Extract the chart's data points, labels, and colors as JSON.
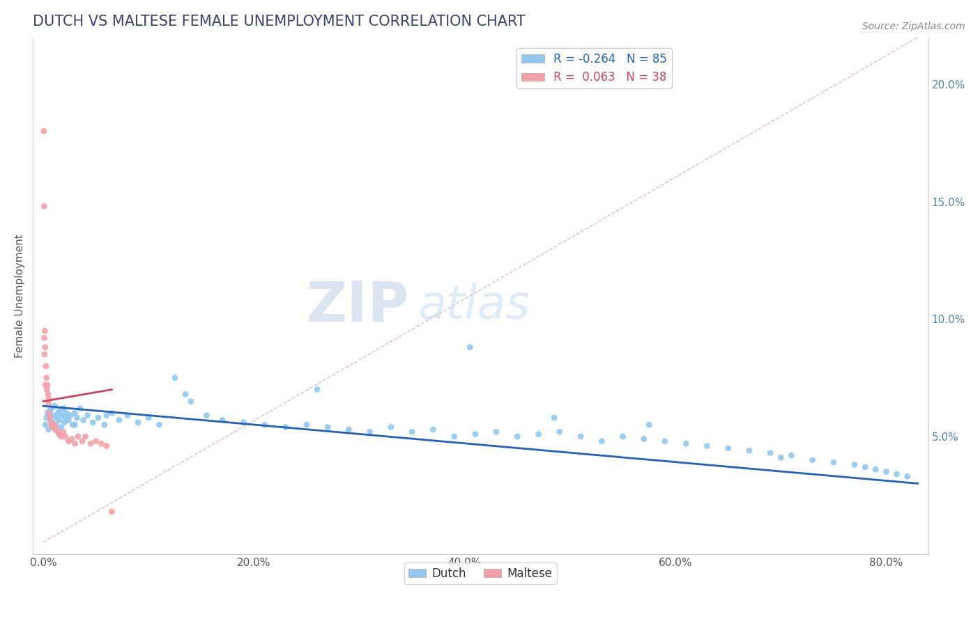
{
  "title": "DUTCH VS MALTESE FEMALE UNEMPLOYMENT CORRELATION CHART",
  "source": "Source: ZipAtlas.com",
  "ylabel": "Female Unemployment",
  "xlim": [
    -1.0,
    84.0
  ],
  "ylim": [
    0.0,
    22.0
  ],
  "yticks": [
    5.0,
    10.0,
    15.0,
    20.0
  ],
  "ytick_labels": [
    "5.0%",
    "10.0%",
    "15.0%",
    "20.0%"
  ],
  "xticks": [
    0.0,
    20.0,
    40.0,
    60.0,
    80.0
  ],
  "xtick_labels": [
    "0.0%",
    "20.0%",
    "40.0%",
    "60.0%",
    "80.0%"
  ],
  "dutch_R": -0.264,
  "dutch_N": 85,
  "maltese_R": 0.063,
  "maltese_N": 38,
  "dutch_dot_color": "#90c8f0",
  "maltese_dot_color": "#f4a0a8",
  "dutch_line_color": "#2060c0",
  "maltese_line_color": "#d04060",
  "ref_line_color": "#d0a0a8",
  "grid_color": "#e8e8e8",
  "background_color": "#ffffff",
  "title_color": "#404070",
  "source_color": "#888888",
  "watermark_text": "ZIPAtlas",
  "watermark_color": "#c8d8ec",
  "legend_dutch_label": "Dutch",
  "legend_maltese_label": "Maltese",
  "dutch_legend_color": "#90c8f0",
  "maltese_legend_color": "#f4a0a8",
  "dutch_x": [
    0.2,
    0.3,
    0.4,
    0.5,
    0.6,
    0.7,
    0.8,
    0.9,
    1.0,
    1.1,
    1.2,
    1.3,
    1.4,
    1.5,
    1.6,
    1.7,
    1.8,
    1.9,
    2.0,
    2.1,
    2.2,
    2.4,
    2.6,
    2.8,
    3.0,
    3.2,
    3.5,
    3.8,
    4.2,
    4.7,
    5.2,
    5.8,
    6.5,
    7.2,
    8.0,
    9.0,
    10.0,
    11.0,
    12.5,
    14.0,
    15.5,
    17.0,
    19.0,
    21.0,
    23.0,
    25.0,
    27.0,
    29.0,
    31.0,
    33.0,
    35.0,
    37.0,
    39.0,
    41.0,
    43.0,
    45.0,
    47.0,
    49.0,
    51.0,
    53.0,
    55.0,
    57.0,
    59.0,
    61.0,
    63.0,
    65.0,
    67.0,
    69.0,
    71.0,
    73.0,
    75.0,
    77.0,
    78.0,
    79.0,
    80.0,
    81.0,
    82.0,
    26.0,
    40.5,
    13.5,
    6.0,
    3.0,
    48.5,
    57.5,
    70.0
  ],
  "dutch_y": [
    5.5,
    5.8,
    6.0,
    5.3,
    6.1,
    5.7,
    6.2,
    5.6,
    5.9,
    6.3,
    5.5,
    5.8,
    6.0,
    5.7,
    6.1,
    5.4,
    5.9,
    6.2,
    5.6,
    5.8,
    6.0,
    5.7,
    5.9,
    5.5,
    6.0,
    5.8,
    6.2,
    5.7,
    5.9,
    5.6,
    5.8,
    5.5,
    6.0,
    5.7,
    5.9,
    5.6,
    5.8,
    5.5,
    7.5,
    6.5,
    5.9,
    5.7,
    5.6,
    5.5,
    5.4,
    5.5,
    5.4,
    5.3,
    5.2,
    5.4,
    5.2,
    5.3,
    5.0,
    5.1,
    5.2,
    5.0,
    5.1,
    5.2,
    5.0,
    4.8,
    5.0,
    4.9,
    4.8,
    4.7,
    4.6,
    4.5,
    4.4,
    4.3,
    4.2,
    4.0,
    3.9,
    3.8,
    3.7,
    3.6,
    3.5,
    3.4,
    3.3,
    7.0,
    8.8,
    6.8,
    5.9,
    5.5,
    5.8,
    5.5,
    4.1
  ],
  "maltese_x": [
    0.05,
    0.08,
    0.1,
    0.12,
    0.15,
    0.18,
    0.2,
    0.25,
    0.3,
    0.35,
    0.4,
    0.45,
    0.5,
    0.55,
    0.6,
    0.65,
    0.7,
    0.8,
    0.9,
    1.0,
    1.1,
    1.2,
    1.4,
    1.5,
    1.7,
    1.9,
    2.1,
    2.4,
    2.7,
    3.0,
    3.3,
    3.7,
    4.0,
    4.5,
    5.0,
    5.5,
    6.0,
    6.5
  ],
  "maltese_y": [
    18.0,
    14.8,
    9.2,
    8.5,
    9.5,
    8.8,
    7.2,
    8.0,
    7.5,
    7.0,
    7.2,
    6.8,
    6.4,
    6.6,
    6.0,
    5.8,
    5.6,
    5.5,
    5.4,
    5.5,
    5.3,
    5.4,
    5.2,
    5.1,
    5.0,
    5.2,
    5.0,
    4.8,
    4.9,
    4.7,
    5.0,
    4.8,
    5.0,
    4.7,
    4.8,
    4.7,
    4.6,
    1.8
  ],
  "dutch_trend_x": [
    0,
    83
  ],
  "dutch_trend_y": [
    6.3,
    3.0
  ],
  "maltese_trend_x": [
    0.0,
    6.5
  ],
  "maltese_trend_y": [
    6.5,
    7.0
  ],
  "ref_line_x": [
    0,
    83
  ],
  "ref_line_y": [
    0.5,
    22.0
  ]
}
